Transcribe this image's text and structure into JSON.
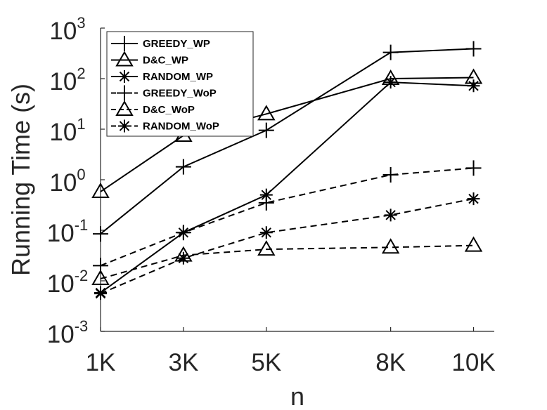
{
  "chart_data": {
    "type": "line",
    "xlabel": "n",
    "ylabel": "Running Time (s)",
    "x": [
      1000,
      3000,
      5000,
      8000,
      10000
    ],
    "x_tick_labels": [
      "1K",
      "3K",
      "5K",
      "8K",
      "10K"
    ],
    "xlim": [
      1000,
      10500
    ],
    "y_scale": "log",
    "ylim": [
      0.001,
      1000
    ],
    "y_ticks": [
      {
        "base": "10",
        "exp": "-3",
        "value": 0.001
      },
      {
        "base": "10",
        "exp": "-2",
        "value": 0.01
      },
      {
        "base": "10",
        "exp": "-1",
        "value": 0.1
      },
      {
        "base": "10",
        "exp": "0",
        "value": 1
      },
      {
        "base": "10",
        "exp": "1",
        "value": 10
      },
      {
        "base": "10",
        "exp": "2",
        "value": 100
      },
      {
        "base": "10",
        "exp": "3",
        "value": 1000
      }
    ],
    "grid": false,
    "legend_position": "top-left",
    "series": [
      {
        "name": "GREEDY_WP",
        "marker": "plus",
        "line_style": "solid",
        "color": "#000000",
        "values": [
          0.085,
          1.8,
          9.5,
          330,
          390
        ]
      },
      {
        "name": "D&C_WP",
        "marker": "triangle",
        "line_style": "solid",
        "color": "#000000",
        "values": [
          0.58,
          7.5,
          20,
          100,
          105
        ]
      },
      {
        "name": "RANDOM_WP",
        "marker": "asterisk",
        "line_style": "solid",
        "color": "#000000",
        "values": [
          0.0058,
          0.09,
          0.5,
          85,
          72
        ]
      },
      {
        "name": "GREEDY_WoP",
        "marker": "plus",
        "line_style": "dashed",
        "color": "#000000",
        "values": [
          0.02,
          0.09,
          0.35,
          1.25,
          1.7
        ]
      },
      {
        "name": "D&C_WoP",
        "marker": "triangle",
        "line_style": "dashed",
        "color": "#000000",
        "values": [
          0.011,
          0.032,
          0.042,
          0.046,
          0.05
        ]
      },
      {
        "name": "RANDOM_WoP",
        "marker": "asterisk",
        "line_style": "dashed",
        "color": "#000000",
        "values": [
          0.0056,
          0.028,
          0.09,
          0.2,
          0.42
        ]
      }
    ]
  }
}
